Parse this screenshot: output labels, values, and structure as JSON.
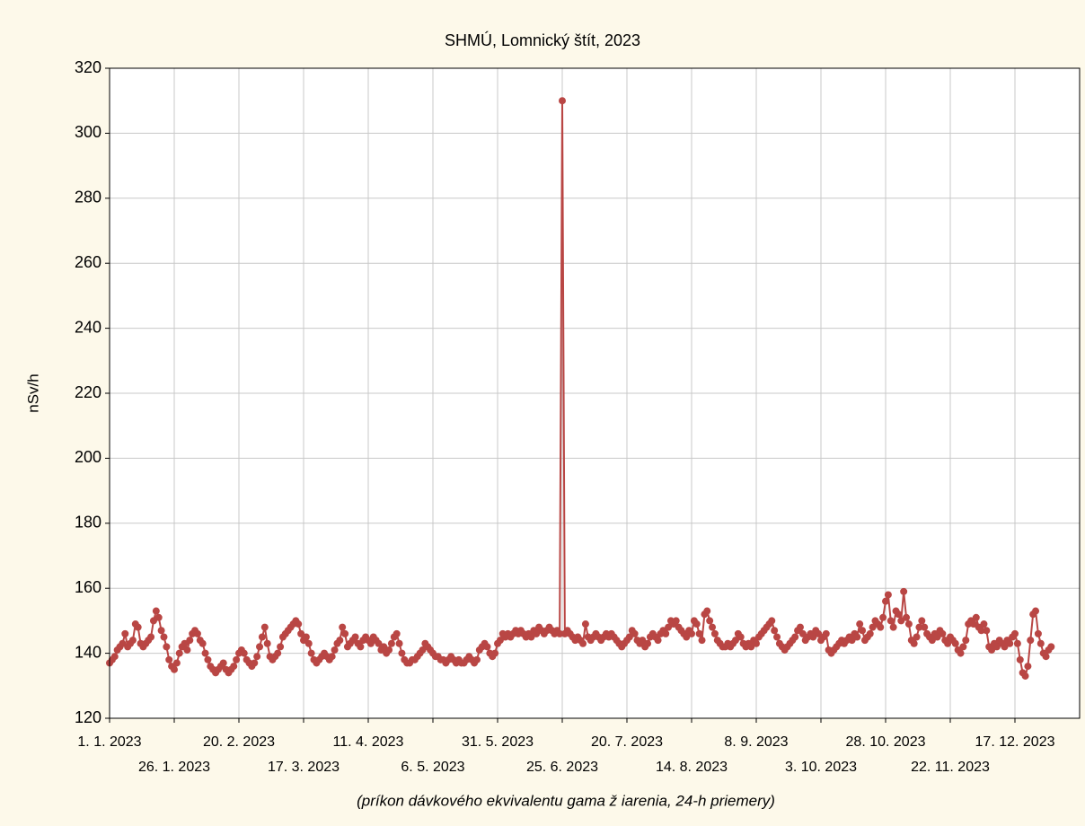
{
  "chart_data": {
    "type": "line",
    "title": "SHMÚ, Lomnický štít, 2023",
    "ylabel": "nSv/h",
    "xlabel": "(príkon dávkového ekvivalentu gama ž iarenia, 24-h priemery)",
    "grid": true,
    "ylim": [
      120,
      320
    ],
    "yticks": [
      120,
      140,
      160,
      180,
      200,
      220,
      240,
      260,
      280,
      300,
      320
    ],
    "xlim": [
      "2023-01-01",
      "2024-01-11"
    ],
    "xticks": [
      {
        "value": "2023-01-01",
        "label": "1. 1. 2023"
      },
      {
        "value": "2023-01-26",
        "label": "26. 1. 2023"
      },
      {
        "value": "2023-02-20",
        "label": "20. 2. 2023"
      },
      {
        "value": "2023-03-17",
        "label": "17. 3. 2023"
      },
      {
        "value": "2023-04-11",
        "label": "11. 4. 2023"
      },
      {
        "value": "2023-05-06",
        "label": "6. 5. 2023"
      },
      {
        "value": "2023-05-31",
        "label": "31. 5. 2023"
      },
      {
        "value": "2023-06-25",
        "label": "25. 6. 2023"
      },
      {
        "value": "2023-07-20",
        "label": "20. 7. 2023"
      },
      {
        "value": "2023-08-14",
        "label": "14. 8. 2023"
      },
      {
        "value": "2023-09-08",
        "label": "8. 9. 2023"
      },
      {
        "value": "2023-10-03",
        "label": "3. 10. 2023"
      },
      {
        "value": "2023-10-28",
        "label": "28. 10. 2023"
      },
      {
        "value": "2023-11-22",
        "label": "22. 11. 2023"
      },
      {
        "value": "2023-12-17",
        "label": "17. 12. 2023"
      }
    ],
    "x": [
      "2023-01-01",
      "2023-01-02",
      "2023-01-03",
      "2023-01-04",
      "2023-01-05",
      "2023-01-06",
      "2023-01-07",
      "2023-01-08",
      "2023-01-09",
      "2023-01-10",
      "2023-01-11",
      "2023-01-12",
      "2023-01-13",
      "2023-01-14",
      "2023-01-15",
      "2023-01-16",
      "2023-01-17",
      "2023-01-18",
      "2023-01-19",
      "2023-01-20",
      "2023-01-21",
      "2023-01-22",
      "2023-01-23",
      "2023-01-24",
      "2023-01-25",
      "2023-01-26",
      "2023-01-27",
      "2023-01-28",
      "2023-01-29",
      "2023-01-30",
      "2023-01-31",
      "2023-02-01",
      "2023-02-02",
      "2023-02-03",
      "2023-02-04",
      "2023-02-05",
      "2023-02-06",
      "2023-02-07",
      "2023-02-08",
      "2023-02-09",
      "2023-02-10",
      "2023-02-11",
      "2023-02-12",
      "2023-02-13",
      "2023-02-14",
      "2023-02-15",
      "2023-02-16",
      "2023-02-17",
      "2023-02-18",
      "2023-02-19",
      "2023-02-20",
      "2023-02-21",
      "2023-02-22",
      "2023-02-23",
      "2023-02-24",
      "2023-02-25",
      "2023-02-26",
      "2023-02-27",
      "2023-02-28",
      "2023-03-01",
      "2023-03-02",
      "2023-03-03",
      "2023-03-04",
      "2023-03-05",
      "2023-03-06",
      "2023-03-07",
      "2023-03-08",
      "2023-03-09",
      "2023-03-10",
      "2023-03-11",
      "2023-03-12",
      "2023-03-13",
      "2023-03-14",
      "2023-03-15",
      "2023-03-16",
      "2023-03-17",
      "2023-03-18",
      "2023-03-19",
      "2023-03-20",
      "2023-03-21",
      "2023-03-22",
      "2023-03-23",
      "2023-03-24",
      "2023-03-25",
      "2023-03-26",
      "2023-03-27",
      "2023-03-28",
      "2023-03-29",
      "2023-03-30",
      "2023-03-31",
      "2023-04-01",
      "2023-04-02",
      "2023-04-03",
      "2023-04-04",
      "2023-04-05",
      "2023-04-06",
      "2023-04-07",
      "2023-04-08",
      "2023-04-09",
      "2023-04-10",
      "2023-04-11",
      "2023-04-12",
      "2023-04-13",
      "2023-04-14",
      "2023-04-15",
      "2023-04-16",
      "2023-04-17",
      "2023-04-18",
      "2023-04-19",
      "2023-04-20",
      "2023-04-21",
      "2023-04-22",
      "2023-04-23",
      "2023-04-24",
      "2023-04-25",
      "2023-04-26",
      "2023-04-27",
      "2023-04-28",
      "2023-04-29",
      "2023-04-30",
      "2023-05-01",
      "2023-05-02",
      "2023-05-03",
      "2023-05-04",
      "2023-05-05",
      "2023-05-06",
      "2023-05-07",
      "2023-05-08",
      "2023-05-09",
      "2023-05-10",
      "2023-05-11",
      "2023-05-12",
      "2023-05-13",
      "2023-05-14",
      "2023-05-15",
      "2023-05-16",
      "2023-05-17",
      "2023-05-18",
      "2023-05-19",
      "2023-05-20",
      "2023-05-21",
      "2023-05-22",
      "2023-05-23",
      "2023-05-24",
      "2023-05-25",
      "2023-05-26",
      "2023-05-27",
      "2023-05-28",
      "2023-05-29",
      "2023-05-30",
      "2023-05-31",
      "2023-06-01",
      "2023-06-02",
      "2023-06-03",
      "2023-06-04",
      "2023-06-05",
      "2023-06-06",
      "2023-06-07",
      "2023-06-08",
      "2023-06-09",
      "2023-06-10",
      "2023-06-11",
      "2023-06-12",
      "2023-06-13",
      "2023-06-14",
      "2023-06-15",
      "2023-06-16",
      "2023-06-17",
      "2023-06-18",
      "2023-06-19",
      "2023-06-20",
      "2023-06-21",
      "2023-06-22",
      "2023-06-23",
      "2023-06-24",
      "2023-06-25",
      "2023-06-26",
      "2023-06-27",
      "2023-06-28",
      "2023-06-29",
      "2023-06-30",
      "2023-07-01",
      "2023-07-02",
      "2023-07-03",
      "2023-07-04",
      "2023-07-05",
      "2023-07-06",
      "2023-07-07",
      "2023-07-08",
      "2023-07-09",
      "2023-07-10",
      "2023-07-11",
      "2023-07-12",
      "2023-07-13",
      "2023-07-14",
      "2023-07-15",
      "2023-07-16",
      "2023-07-17",
      "2023-07-18",
      "2023-07-19",
      "2023-07-20",
      "2023-07-21",
      "2023-07-22",
      "2023-07-23",
      "2023-07-24",
      "2023-07-25",
      "2023-07-26",
      "2023-07-27",
      "2023-07-28",
      "2023-07-29",
      "2023-07-30",
      "2023-07-31",
      "2023-08-01",
      "2023-08-02",
      "2023-08-03",
      "2023-08-04",
      "2023-08-05",
      "2023-08-06",
      "2023-08-07",
      "2023-08-08",
      "2023-08-09",
      "2023-08-10",
      "2023-08-11",
      "2023-08-12",
      "2023-08-13",
      "2023-08-14",
      "2023-08-15",
      "2023-08-16",
      "2023-08-17",
      "2023-08-18",
      "2023-08-19",
      "2023-08-20",
      "2023-08-21",
      "2023-08-22",
      "2023-08-23",
      "2023-08-24",
      "2023-08-25",
      "2023-08-26",
      "2023-08-27",
      "2023-08-28",
      "2023-08-29",
      "2023-08-30",
      "2023-08-31",
      "2023-09-01",
      "2023-09-02",
      "2023-09-03",
      "2023-09-04",
      "2023-09-05",
      "2023-09-06",
      "2023-09-07",
      "2023-09-08",
      "2023-09-09",
      "2023-09-10",
      "2023-09-11",
      "2023-09-12",
      "2023-09-13",
      "2023-09-14",
      "2023-09-15",
      "2023-09-16",
      "2023-09-17",
      "2023-09-18",
      "2023-09-19",
      "2023-09-20",
      "2023-09-21",
      "2023-09-22",
      "2023-09-23",
      "2023-09-24",
      "2023-09-25",
      "2023-09-26",
      "2023-09-27",
      "2023-09-28",
      "2023-09-29",
      "2023-09-30",
      "2023-10-01",
      "2023-10-02",
      "2023-10-03",
      "2023-10-04",
      "2023-10-05",
      "2023-10-06",
      "2023-10-07",
      "2023-10-08",
      "2023-10-09",
      "2023-10-10",
      "2023-10-11",
      "2023-10-12",
      "2023-10-13",
      "2023-10-14",
      "2023-10-15",
      "2023-10-16",
      "2023-10-17",
      "2023-10-18",
      "2023-10-19",
      "2023-10-20",
      "2023-10-21",
      "2023-10-22",
      "2023-10-23",
      "2023-10-24",
      "2023-10-25",
      "2023-10-26",
      "2023-10-27",
      "2023-10-28",
      "2023-10-29",
      "2023-10-30",
      "2023-10-31",
      "2023-11-01",
      "2023-11-02",
      "2023-11-03",
      "2023-11-04",
      "2023-11-05",
      "2023-11-06",
      "2023-11-07",
      "2023-11-08",
      "2023-11-09",
      "2023-11-10",
      "2023-11-11",
      "2023-11-12",
      "2023-11-13",
      "2023-11-14",
      "2023-11-15",
      "2023-11-16",
      "2023-11-17",
      "2023-11-18",
      "2023-11-19",
      "2023-11-20",
      "2023-11-21",
      "2023-11-22",
      "2023-11-23",
      "2023-11-24",
      "2023-11-25",
      "2023-11-26",
      "2023-11-27",
      "2023-11-28",
      "2023-11-29",
      "2023-11-30",
      "2023-12-01",
      "2023-12-02",
      "2023-12-03",
      "2023-12-04",
      "2023-12-05",
      "2023-12-06",
      "2023-12-07",
      "2023-12-08",
      "2023-12-09",
      "2023-12-10",
      "2023-12-11",
      "2023-12-12",
      "2023-12-13",
      "2023-12-14",
      "2023-12-15",
      "2023-12-16",
      "2023-12-17",
      "2023-12-18",
      "2023-12-19",
      "2023-12-20",
      "2023-12-21",
      "2023-12-22",
      "2023-12-23",
      "2023-12-24",
      "2023-12-25",
      "2023-12-26",
      "2023-12-27",
      "2023-12-28",
      "2023-12-29",
      "2023-12-30",
      "2023-12-31"
    ],
    "series": [
      {
        "color": "#b94644",
        "values": [
          137,
          138,
          139,
          141,
          142,
          143,
          146,
          142,
          143,
          144,
          149,
          148,
          143,
          142,
          143,
          144,
          145,
          150,
          153,
          151,
          147,
          145,
          142,
          138,
          136,
          135,
          137,
          140,
          142,
          143,
          141,
          144,
          146,
          147,
          146,
          144,
          143,
          140,
          138,
          136,
          135,
          134,
          135,
          136,
          137,
          135,
          134,
          135,
          136,
          138,
          140,
          141,
          140,
          138,
          137,
          136,
          137,
          139,
          142,
          145,
          148,
          143,
          139,
          138,
          139,
          140,
          142,
          145,
          146,
          147,
          148,
          149,
          150,
          149,
          146,
          144,
          145,
          143,
          140,
          138,
          137,
          138,
          139,
          140,
          139,
          138,
          139,
          141,
          143,
          144,
          148,
          146,
          142,
          143,
          144,
          145,
          143,
          142,
          144,
          145,
          144,
          143,
          145,
          144,
          143,
          141,
          142,
          140,
          141,
          143,
          145,
          146,
          143,
          140,
          138,
          137,
          137,
          138,
          138,
          139,
          140,
          141,
          143,
          142,
          141,
          140,
          139,
          139,
          138,
          138,
          137,
          138,
          139,
          138,
          137,
          138,
          137,
          137,
          138,
          139,
          138,
          137,
          138,
          141,
          142,
          143,
          142,
          140,
          139,
          140,
          143,
          144,
          146,
          145,
          146,
          145,
          146,
          147,
          146,
          147,
          146,
          145,
          146,
          145,
          147,
          146,
          148,
          147,
          146,
          147,
          148,
          147,
          146,
          147,
          146,
          310,
          146,
          147,
          146,
          145,
          144,
          145,
          144,
          143,
          149,
          145,
          144,
          145,
          146,
          145,
          144,
          145,
          146,
          145,
          146,
          145,
          144,
          143,
          142,
          143,
          144,
          145,
          147,
          146,
          144,
          143,
          144,
          142,
          143,
          145,
          146,
          145,
          144,
          146,
          147,
          146,
          148,
          150,
          149,
          150,
          148,
          147,
          146,
          145,
          147,
          146,
          150,
          149,
          146,
          144,
          152,
          153,
          150,
          148,
          146,
          144,
          143,
          142,
          142,
          143,
          142,
          143,
          144,
          146,
          145,
          143,
          142,
          143,
          142,
          144,
          143,
          145,
          146,
          147,
          148,
          149,
          150,
          147,
          145,
          143,
          142,
          141,
          142,
          143,
          144,
          145,
          147,
          148,
          146,
          144,
          145,
          146,
          145,
          147,
          146,
          144,
          145,
          146,
          141,
          140,
          141,
          142,
          143,
          144,
          143,
          144,
          145,
          144,
          146,
          145,
          149,
          147,
          144,
          145,
          146,
          148,
          150,
          149,
          148,
          151,
          156,
          158,
          150,
          148,
          153,
          152,
          150,
          159,
          151,
          149,
          144,
          143,
          145,
          148,
          150,
          148,
          146,
          145,
          144,
          146,
          145,
          147,
          146,
          144,
          143,
          145,
          144,
          143,
          141,
          140,
          142,
          144,
          149,
          150,
          149,
          151,
          148,
          147,
          149,
          147,
          142,
          141,
          143,
          142,
          144,
          143,
          142,
          144,
          143,
          145,
          146,
          143,
          138,
          134,
          133,
          136,
          144,
          152,
          153,
          146,
          143,
          140,
          139,
          141,
          142
        ]
      }
    ]
  }
}
